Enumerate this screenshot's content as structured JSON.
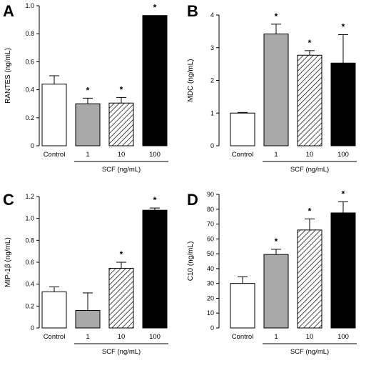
{
  "chart_data": [
    {
      "type": "bar",
      "panel": "A",
      "ylabel": "RANTES (ng/mL)",
      "ylim": [
        0,
        1.0
      ],
      "yticks": [
        "0",
        "0.2",
        "0.4",
        "0.6",
        "0.8",
        "1.0"
      ],
      "categories": [
        "Control",
        "1",
        "10",
        "100"
      ],
      "group_label": "SCF (ng/mL)",
      "values": [
        0.44,
        0.3,
        0.305,
        0.93
      ],
      "errors": [
        0.06,
        0.04,
        0.04,
        0.0
      ],
      "significant": [
        false,
        true,
        true,
        true
      ],
      "significance_mark": "*",
      "fills": [
        "white",
        "gray",
        "hatched",
        "black"
      ]
    },
    {
      "type": "bar",
      "panel": "B",
      "ylabel": "MDC (ng/mL)",
      "ylim": [
        0,
        4
      ],
      "yticks": [
        "0",
        "1",
        "2",
        "3",
        "4"
      ],
      "categories": [
        "Control",
        "1",
        "10",
        "100"
      ],
      "group_label": "SCF (ng/mL)",
      "values": [
        1.0,
        3.42,
        2.77,
        2.53
      ],
      "errors": [
        0.02,
        0.3,
        0.14,
        0.87
      ],
      "significant": [
        false,
        true,
        true,
        true
      ],
      "significance_mark": "*",
      "fills": [
        "white",
        "gray",
        "hatched",
        "black"
      ]
    },
    {
      "type": "bar",
      "panel": "C",
      "ylabel": "MIP-1β (ng/mL)",
      "ylim": [
        0,
        1.2
      ],
      "yticks": [
        "0",
        "0.2",
        "0.4",
        "0.6",
        "0.8",
        "1.0",
        "1.2"
      ],
      "categories": [
        "Control",
        "1",
        "10",
        "100"
      ],
      "group_label": "SCF (ng/mL)",
      "values": [
        0.33,
        0.16,
        0.545,
        1.075
      ],
      "errors": [
        0.045,
        0.16,
        0.055,
        0.02
      ],
      "significant": [
        false,
        false,
        true,
        true
      ],
      "significance_mark": "*",
      "fills": [
        "white",
        "gray",
        "hatched",
        "black"
      ]
    },
    {
      "type": "bar",
      "panel": "D",
      "ylabel": "C10 (ng/mL)",
      "ylim": [
        0,
        90
      ],
      "yticks": [
        "0",
        "10",
        "20",
        "30",
        "40",
        "50",
        "60",
        "70",
        "80",
        "90"
      ],
      "categories": [
        "Control",
        "1",
        "10",
        "100"
      ],
      "group_label": "SCF (ng/mL)",
      "values": [
        30,
        49.5,
        66,
        77.5
      ],
      "errors": [
        4.5,
        3.5,
        7.5,
        7.5
      ],
      "significant": [
        false,
        true,
        true,
        true
      ],
      "significance_mark": "*",
      "fills": [
        "white",
        "gray",
        "hatched",
        "black"
      ]
    }
  ],
  "colors": {
    "gray": "#a9a9a9",
    "black": "#000000",
    "white": "#ffffff"
  }
}
